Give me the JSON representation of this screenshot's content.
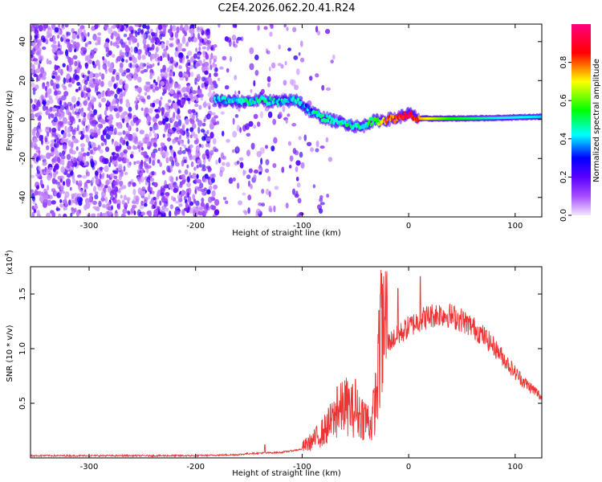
{
  "title": "C2E4.2026.062.20.41.R24",
  "chart_data": [
    {
      "type": "heatmap",
      "xlabel": "Height of straight line (km)",
      "ylabel": "Frequency (Hz)",
      "xlim": [
        -355,
        125
      ],
      "ylim": [
        -50,
        49
      ],
      "xticks": [
        -300,
        -200,
        -100,
        0,
        100
      ],
      "xtick_labels": [
        "-300",
        "-200",
        "-100",
        "0",
        "100"
      ],
      "yticks": [
        -40,
        -20,
        0,
        20,
        40
      ],
      "ytick_labels": [
        "-40",
        "-20",
        "0",
        "20",
        "40"
      ],
      "colorbar": {
        "label": "Normalized spectral amplitude",
        "range": [
          0.0,
          1.0
        ],
        "ticks": [
          0.0,
          0.2,
          0.4,
          0.6,
          0.8
        ],
        "tick_labels": [
          "0.0",
          "0.2",
          "0.4",
          "0.6",
          "0.8"
        ],
        "colors": [
          "#f2e6ff",
          "#a64dff",
          "#5a00ff",
          "#0000ff",
          "#00ffff",
          "#00ff00",
          "#ffff00",
          "#ff0000",
          "#ff0080"
        ]
      },
      "ridge": {
        "x": [
          -180,
          -160,
          -140,
          -120,
          -105,
          -95,
          -85,
          -75,
          -60,
          -45,
          -35,
          -20,
          -10,
          0,
          10,
          40,
          80,
          125
        ],
        "frequency": [
          10,
          9,
          10,
          9,
          10,
          5,
          2,
          0,
          -2,
          -4,
          -1,
          0,
          1,
          3,
          0.5,
          0.5,
          0.8,
          1.5
        ],
        "amplitude": [
          0.4,
          0.45,
          0.45,
          0.4,
          0.4,
          0.35,
          0.45,
          0.5,
          0.45,
          0.45,
          0.5,
          0.8,
          0.85,
          0.9,
          0.75,
          0.55,
          0.45,
          0.4
        ]
      }
    },
    {
      "type": "line",
      "xlabel": "Height of straight line (km)",
      "ylabel": "SNR (10 * v/v)",
      "y_multiplier_label": "(x10",
      "y_multiplier_exp": "4",
      "y_multiplier_close": ")",
      "xlim": [
        -355,
        125
      ],
      "ylim": [
        0,
        1.75
      ],
      "xticks": [
        -300,
        -200,
        -100,
        0,
        100
      ],
      "xtick_labels": [
        "-300",
        "-200",
        "-100",
        "0",
        "100"
      ],
      "yticks": [
        0.5,
        1.0,
        1.5
      ],
      "ytick_labels": [
        "0.5",
        "1.0",
        "1.5"
      ],
      "color": "#ee3333",
      "envelope_x": [
        -355,
        -200,
        -160,
        -150,
        -120,
        -100,
        -90,
        -80,
        -70,
        -60,
        -50,
        -40,
        -35,
        -30,
        -25,
        -20,
        -10,
        0,
        10,
        20,
        30,
        40,
        50,
        60,
        70,
        80,
        90,
        100,
        110,
        120,
        125
      ],
      "envelope_y": [
        0.02,
        0.02,
        0.03,
        0.04,
        0.05,
        0.08,
        0.13,
        0.2,
        0.3,
        0.4,
        0.35,
        0.3,
        0.25,
        0.5,
        0.95,
        1.05,
        1.12,
        1.2,
        1.26,
        1.3,
        1.32,
        1.3,
        1.26,
        1.2,
        1.12,
        1.02,
        0.9,
        0.78,
        0.68,
        0.6,
        0.55
      ],
      "peaks": [
        {
          "x": -26,
          "y": 1.72
        },
        {
          "x": 11,
          "y": 1.66
        },
        {
          "x": -10,
          "y": 1.55
        },
        {
          "x": -50,
          "y": 0.72
        },
        {
          "x": -67,
          "y": 0.65
        },
        {
          "x": -28,
          "y": 1.35
        },
        {
          "x": -135,
          "y": 0.12
        }
      ]
    }
  ]
}
